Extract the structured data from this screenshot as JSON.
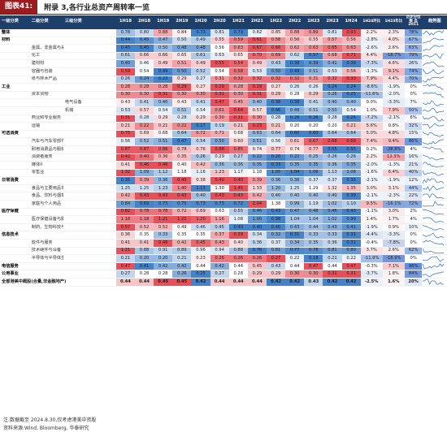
{
  "figure": {
    "label": "图表41:",
    "title": "附录 3,各行业总资产周转率一览"
  },
  "table": {
    "header_l1": "一级分类",
    "header_group": "全部港美中资股",
    "header_l2": "二级分类",
    "header_l3": "三级分类",
    "periods": [
      "1H18",
      "2H18",
      "1H19",
      "2H19",
      "1H20",
      "2H20",
      "1H21",
      "2H21",
      "1H22",
      "2H22",
      "1H23",
      "2H23",
      "1H24"
    ],
    "stats": [
      "1H24环比",
      "1H23年比",
      "历史分位数 自2H11"
    ],
    "trend_header": "趋势图",
    "rows": [
      {
        "l1": "整体",
        "l2": "",
        "l3": "",
        "v": [
          "0.78",
          "0.80",
          "0.88",
          "0.84",
          "0.73",
          "0.81",
          "0.73",
          "0.82",
          "0.85",
          "0.88",
          "0.89",
          "0.81",
          "0.93"
        ],
        "s": [
          "2.2%",
          "2.3%",
          "78%"
        ],
        "section": true
      },
      {
        "l1": "材料",
        "l2": "",
        "l3": "",
        "v": [
          "0.44",
          "0.45",
          "0.47",
          "0.50",
          "0.49",
          "0.55",
          "0.59",
          "0.61",
          "0.58",
          "0.56",
          "0.55",
          "0.57",
          "0.56"
        ],
        "s": [
          "-2.8%",
          "4.0%",
          "67%"
        ],
        "section": true
      },
      {
        "l1": "",
        "l2": "金属、非金属与采矿",
        "l3": "",
        "v": [
          "0.45",
          "0.45",
          "0.50",
          "0.48",
          "0.48",
          "0.56",
          "0.63",
          "0.67",
          "0.66",
          "0.62",
          "0.63",
          "0.65",
          "0.63"
        ],
        "s": [
          "-2.6%",
          "2.6%",
          "63%"
        ]
      },
      {
        "l1": "",
        "l2": "化工",
        "l3": "",
        "v": [
          "0.61",
          "0.66",
          "0.66",
          "0.65",
          "0.61",
          "0.63",
          "0.65",
          "0.70",
          "0.69",
          "0.62",
          "0.57",
          "0.68",
          "0.71"
        ],
        "s": [
          "4.4%",
          "-18.7%",
          "79%"
        ]
      },
      {
        "l1": "",
        "l2": "建材材",
        "l3": "",
        "v": [
          "0.40",
          "0.46",
          "0.49",
          "0.51",
          "0.49",
          "0.55",
          "0.54",
          "0.49",
          "0.43",
          "0.38",
          "0.39",
          "0.41",
          "0.38"
        ],
        "s": [
          "-7.3%",
          "4.6%",
          "26%"
        ]
      },
      {
        "l1": "",
        "l2": "容器与包装",
        "l3": "",
        "v": [
          "0.59",
          "0.54",
          "0.49",
          "0.50",
          "0.52",
          "0.54",
          "0.58",
          "0.53",
          "0.50",
          "0.49",
          "0.51",
          "0.53",
          "0.56"
        ],
        "s": [
          "-1.3%",
          "9.1%",
          "74%"
        ]
      },
      {
        "l1": "",
        "l2": "纸与林木产品",
        "l3": "",
        "v": [
          "0.26",
          "0.24",
          "0.23",
          "0.29",
          "0.27",
          "0.31",
          "0.32",
          "0.32",
          "0.32",
          "0.32",
          "0.31",
          "0.32",
          "0.33"
        ],
        "s": [
          "7.9%",
          "4.4%",
          "70%"
        ]
      },
      {
        "l1": "工业",
        "l2": "",
        "l3": "",
        "v": [
          "0.28",
          "0.28",
          "0.28",
          "0.29",
          "0.27",
          "0.29",
          "0.28",
          "0.29",
          "0.27",
          "0.26",
          "0.26",
          "0.24",
          "0.24"
        ],
        "s": [
          "-8.6%",
          "-1.9%",
          "0%"
        ],
        "section": true
      },
      {
        "l1": "",
        "l2": "资本货物",
        "l3": "",
        "v": [
          "0.30",
          "0.30",
          "0.31",
          "0.30",
          "0.30",
          "0.31",
          "0.30",
          "0.31",
          "0.29",
          "0.28",
          "0.29",
          "0.26",
          "0.25"
        ],
        "s": [
          "-11.6%",
          "-2.0%",
          "0%"
        ]
      },
      {
        "l1": "",
        "l2": "",
        "l3": "电气设备",
        "v": [
          "0.43",
          "0.41",
          "0.40",
          "0.43",
          "0.41",
          "0.47",
          "0.45",
          "0.40",
          "0.38",
          "0.38",
          "0.41",
          "0.40",
          "0.40"
        ],
        "s": [
          "0.0%",
          "-3.3%",
          "7%"
        ]
      },
      {
        "l1": "",
        "l2": "",
        "l3": "机械",
        "v": [
          "0.53",
          "0.57",
          "0.54",
          "0.51",
          "0.54",
          "0.61",
          "0.64",
          "0.57",
          "0.46",
          "0.49",
          "0.51",
          "0.50",
          "0.54"
        ],
        "s": [
          "1.0%",
          "7.9%",
          "50%"
        ]
      },
      {
        "l1": "",
        "l2": "商业和专业服务",
        "l3": "",
        "v": [
          "0.31",
          "0.28",
          "0.29",
          "0.28",
          "0.29",
          "0.30",
          "0.31",
          "0.30",
          "0.28",
          "0.26",
          "0.26",
          "0.28",
          "0.26"
        ],
        "s": [
          "-7.2%",
          "-2.1%",
          "6%"
        ]
      },
      {
        "l1": "",
        "l2": "运输",
        "l3": "",
        "v": [
          "0.21",
          "0.22",
          "0.21",
          "0.22",
          "0.17",
          "0.19",
          "0.21",
          "0.23",
          "0.21",
          "0.20",
          "0.20",
          "0.20",
          "0.21"
        ],
        "s": [
          "5.6%",
          "0.8%",
          "32%"
        ]
      },
      {
        "l1": "可选消费",
        "l2": "",
        "l3": "",
        "v": [
          "0.75",
          "0.69",
          "0.68",
          "0.64",
          "0.72",
          "0.71",
          "0.68",
          "0.63",
          "0.64",
          "0.60",
          "0.60",
          "0.64",
          "0.64"
        ],
        "s": [
          "5.0%",
          "4.8%",
          "15%"
        ],
        "section": true
      },
      {
        "l1": "",
        "l2": "汽车与汽车零部件",
        "l3": "",
        "v": [
          "0.56",
          "0.52",
          "0.51",
          "0.47",
          "0.54",
          "0.50",
          "0.60",
          "0.51",
          "0.56",
          "0.61",
          "0.67",
          "0.68",
          "0.68"
        ],
        "s": [
          "7.4%",
          "9.4%",
          "86%"
        ]
      },
      {
        "l1": "",
        "l2": "耐用消费品与服装",
        "l3": "",
        "v": [
          "0.87",
          "0.87",
          "0.86",
          "0.78",
          "0.76",
          "0.88",
          "0.85",
          "0.74",
          "0.77",
          "0.74",
          "0.77",
          "0.55",
          "0.55"
        ],
        "s": [
          "0.2%",
          "-28.8%",
          "4%"
        ]
      },
      {
        "l1": "",
        "l2": "消费者服务",
        "l3": "",
        "v": [
          "0.42",
          "0.40",
          "0.36",
          "0.35",
          "0.26",
          "0.29",
          "0.27",
          "0.22",
          "0.20",
          "0.22",
          "0.25",
          "0.26",
          "0.26"
        ],
        "s": [
          "2.2%",
          "12.3%",
          "16%"
        ]
      },
      {
        "l1": "",
        "l2": "媒体II",
        "l3": "",
        "v": [
          "0.41",
          "0.46",
          "0.46",
          "0.40",
          "0.42",
          "0.36",
          "0.36",
          "0.35",
          "0.33",
          "0.35",
          "0.35",
          "0.36",
          "0.35"
        ],
        "s": [
          "-2.0%",
          "-1.3%",
          "21%"
        ]
      },
      {
        "l1": "",
        "l2": "零售业",
        "l3": "",
        "v": [
          "1.32",
          "1.09",
          "1.12",
          "1.18",
          "1.16",
          "1.23",
          "1.17",
          "1.18",
          "1.05",
          "1.04",
          "1.06",
          "1.13",
          "1.08"
        ],
        "s": [
          "-1.6%",
          "6.4%",
          "40%"
        ]
      },
      {
        "l1": "日常消费",
        "l2": "",
        "l3": "",
        "v": [
          "0.35",
          "0.39",
          "0.36",
          "0.40",
          "0.38",
          "0.40",
          "0.40",
          "0.39",
          "0.36",
          "0.36",
          "0.37",
          "0.37",
          "0.35"
        ],
        "s": [
          "-2.1%",
          "-1.9%",
          "12%"
        ],
        "section": true
      },
      {
        "l1": "",
        "l2": "食品与主要用品零售II",
        "l3": "",
        "v": [
          "1.25",
          "1.25",
          "1.23",
          "1.40",
          "1.13",
          "1.30",
          "1.45",
          "1.33",
          "1.20",
          "1.25",
          "1.29",
          "1.32",
          "1.35"
        ],
        "s": [
          "3.0%",
          "3.1%",
          "44%"
        ]
      },
      {
        "l1": "",
        "l2": "食品、饮料与烟草",
        "l3": "",
        "v": [
          "0.42",
          "0.43",
          "0.43",
          "0.43",
          "0.40",
          "0.43",
          "0.43",
          "0.42",
          "0.40",
          "0.40",
          "0.40",
          "0.40",
          "0.39"
        ],
        "s": [
          "-2.1%",
          "-2.3%",
          "22%"
        ]
      },
      {
        "l1": "",
        "l2": "家庭与个人用品",
        "l3": "",
        "v": [
          "0.84",
          "0.69",
          "0.73",
          "0.75",
          "0.73",
          "0.73",
          "0.72",
          "2.04",
          "1.38",
          "0.99",
          "1.19",
          "1.02",
          "1.10"
        ],
        "s": [
          "9.5%",
          "-16.1%",
          "72%"
        ]
      },
      {
        "l1": "医疗保健",
        "l2": "",
        "l3": "",
        "v": [
          "0.82",
          "0.78",
          "0.78",
          "0.72",
          "0.69",
          "0.63",
          "0.55",
          "0.46",
          "0.43",
          "0.47",
          "0.48",
          "0.46",
          "0.43"
        ],
        "s": [
          "-1.1%",
          "3.0%",
          "2%"
        ],
        "section": true
      },
      {
        "l1": "",
        "l2": "医疗保健设备与服务",
        "l3": "",
        "v": [
          "1.18",
          "1.18",
          "1.21",
          "1.21",
          "1.20",
          "1.16",
          "1.08",
          "1.00",
          "0.98",
          "1.04",
          "1.04",
          "1.02",
          "0.99"
        ],
        "s": [
          "1.4%",
          "1.7%",
          "4%"
        ]
      },
      {
        "l1": "",
        "l2": "制药、生物科技与生命科学",
        "l3": "",
        "v": [
          "0.57",
          "0.52",
          "0.52",
          "0.49",
          "0.46",
          "0.45",
          "0.40",
          "0.40",
          "0.40",
          "0.43",
          "0.44",
          "0.43",
          "0.41"
        ],
        "s": [
          "-1.9%",
          "0.9%",
          "10%"
        ]
      },
      {
        "l1": "信息技术",
        "l2": "",
        "l3": "",
        "v": [
          "0.36",
          "0.35",
          "0.33",
          "0.35",
          "0.35",
          "0.37",
          "0.39",
          "0.34",
          "0.32",
          "0.31",
          "0.33",
          "0.33",
          "0.31"
        ],
        "s": [
          "-4.4%",
          "-3.3%",
          "0%"
        ],
        "section": true
      },
      {
        "l1": "",
        "l2": "软件与服务",
        "l3": "",
        "v": [
          "0.41",
          "0.41",
          "0.46",
          "0.42",
          "0.45",
          "0.43",
          "0.40",
          "0.36",
          "0.37",
          "0.34",
          "0.35",
          "0.36",
          "0.31"
        ],
        "s": [
          "-0.4%",
          "-7.8%",
          "0%"
        ]
      },
      {
        "l1": "",
        "l2": "技术硬件与设备",
        "l3": "",
        "v": [
          "1.21",
          "0.88",
          "0.91",
          "0.89",
          "0.96",
          "0.94",
          "0.88",
          "0.76",
          "0.81",
          "0.77",
          "0.78",
          "0.81",
          "0.80"
        ],
        "s": [
          "3.7%",
          "2.6%",
          "62%"
        ]
      },
      {
        "l1": "",
        "l2": "半导体与半导体生产设备",
        "l3": "",
        "v": [
          "0.21",
          "0.20",
          "0.20",
          "0.21",
          "0.23",
          "0.26",
          "0.26",
          "0.26",
          "0.27",
          "0.22",
          "0.18",
          "0.21",
          "0.22"
        ],
        "s": [
          "-11.9%",
          "-18.9%",
          "0%"
        ]
      },
      {
        "l1": "电信服务",
        "l2": "",
        "l3": "",
        "v": [
          "0.47",
          "0.41",
          "0.42",
          "0.42",
          "0.44",
          "0.42",
          "0.44",
          "0.45",
          "0.43",
          "0.44",
          "0.47",
          "0.44",
          "0.47"
        ],
        "s": [
          "-0.3%",
          "7.1%",
          "96%"
        ],
        "section": true
      },
      {
        "l1": "公用事业",
        "l2": "",
        "l3": "",
        "v": [
          "0.27",
          "0.28",
          "0.28",
          "0.26",
          "0.25",
          "0.27",
          "0.28",
          "0.29",
          "0.29",
          "0.30",
          "0.30",
          "0.31",
          "0.31"
        ],
        "s": [
          "-3.7%",
          "1.8%",
          "84%"
        ],
        "section": true
      },
      {
        "l1": "全部港美中概股(合量,非金融地产)",
        "l2": "",
        "l3": "",
        "v": [
          "0.44",
          "0.44",
          "0.45",
          "0.45",
          "0.42",
          "0.44",
          "0.44",
          "0.44",
          "0.42",
          "0.42",
          "0.43",
          "0.42",
          "0.42"
        ],
        "s": [
          "-2.5%",
          "1.6%",
          "20%"
        ],
        "bench": true
      }
    ]
  },
  "footnotes": [
    "注:数据截至 2024.8.30,仅考虑港美中资股",
    "资料来源:Wind, Bloomberg, 华泰研究"
  ]
}
